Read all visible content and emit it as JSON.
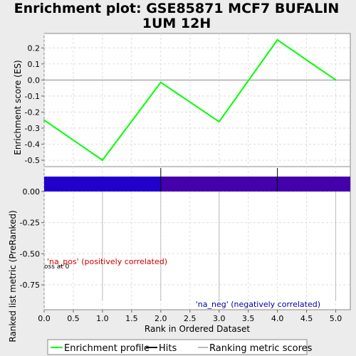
{
  "chart_data": {
    "title_line1": "Enrichment plot: GSE85871 MCF7 BUFALIN",
    "title_line2": "1UM 12H",
    "xlabel": "Rank in Ordered Dataset",
    "es_panel": {
      "type": "line",
      "ylabel": "Enrichment score (ES)",
      "ylim": [
        -0.54,
        0.29
      ],
      "yticks": [
        0.2,
        0.1,
        0.0,
        -0.1,
        -0.2,
        -0.3,
        -0.4,
        -0.5
      ],
      "ytick_labels": [
        "0.2",
        "0.1",
        "0.0",
        "-0.1",
        "-0.2",
        "-0.3",
        "-0.4",
        "-0.5"
      ],
      "series": [
        {
          "label": "Enrichment profile",
          "color": "#00ff00",
          "x": [
            0,
            1,
            2,
            3,
            4,
            5
          ],
          "y": [
            -0.25,
            -0.5,
            -0.015,
            -0.26,
            0.25,
            0.0
          ]
        }
      ]
    },
    "hits": {
      "label": "Hits",
      "x": [
        2,
        4
      ],
      "color": "#000000"
    },
    "rank_panel": {
      "type": "bar",
      "ylabel": "Ranked list metric (PreRanked)",
      "ylim": [
        -0.95,
        0.2
      ],
      "yticks": [
        0.0,
        -0.25,
        -0.5,
        -0.75
      ],
      "ytick_labels": [
        "0.00",
        "-0.25",
        "-0.50",
        "-0.75"
      ],
      "series_label": "Ranking metric scores",
      "bar_segments": [
        {
          "x0": 0,
          "x1": 2,
          "color": "#2200cc"
        },
        {
          "x0": 2,
          "x1": 5.25,
          "color": "#4400aa"
        }
      ],
      "bar_top": 0.12,
      "bar_bottom": 0.0,
      "metric_lines_x": [
        1,
        2,
        3,
        5
      ]
    },
    "xlim": [
      0,
      5.25
    ],
    "xticks": [
      0.0,
      0.5,
      1.0,
      1.5,
      2.0,
      2.5,
      3.0,
      3.5,
      4.0,
      4.5,
      5.0
    ],
    "xtick_labels": [
      "0.0",
      "0.5",
      "1.0",
      "1.5",
      "2.0",
      "2.5",
      "3.0",
      "3.5",
      "4.0",
      "4.5",
      "5.0"
    ],
    "annotations": {
      "pos": "'na_pos' (positively correlated)",
      "pos_color": "#cc0000",
      "neg": "'na_neg' (negatively correlated)",
      "neg_color": "#0000aa",
      "zero_cross": "oss at 0"
    },
    "legend": [
      "Enrichment profile",
      "Hits",
      "Ranking metric scores"
    ]
  }
}
